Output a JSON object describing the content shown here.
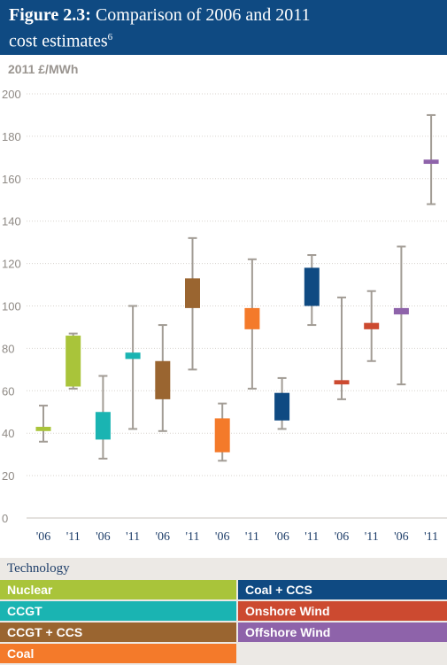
{
  "header": {
    "figure_label": "Figure 2.3:",
    "title_line1": "Comparison of 2006 and 2011",
    "title_line2": "cost estimates",
    "footnote": "6"
  },
  "colors": {
    "header_bg": "#0f4a82",
    "whisker": "#a29c95",
    "Nuclear": "#a9c43a",
    "CCGT": "#1ab4b2",
    "CCGT + CCS": "#9a6530",
    "Coal": "#f47a2a",
    "Coal + CCS": "#0f4a82",
    "Onshore Wind": "#cc4a30",
    "Offshore Wind": "#8e63aa"
  },
  "legend": {
    "title": "Technology",
    "items": [
      "Nuclear",
      "CCGT",
      "CCGT + CCS",
      "Coal",
      "Coal + CCS",
      "Onshore Wind",
      "Offshore Wind"
    ]
  },
  "chart_data": {
    "type": "box",
    "ylabel": "2011 £/MWh",
    "ylim": [
      0,
      200
    ],
    "yticks": [
      0,
      20,
      40,
      60,
      80,
      100,
      120,
      140,
      160,
      180,
      200
    ],
    "categories": [
      "'06",
      "'11",
      "'06",
      "'11",
      "'06",
      "'11",
      "'06",
      "'11",
      "'06",
      "'11",
      "'06",
      "'11",
      "'06",
      "'11"
    ],
    "series": [
      {
        "name": "Nuclear",
        "boxes": [
          {
            "year": "'06",
            "low": 36,
            "box_low": 41,
            "box_high": 43,
            "high": 53
          },
          {
            "year": "'11",
            "low": 61,
            "box_low": 62,
            "box_high": 86,
            "high": 87
          }
        ]
      },
      {
        "name": "CCGT",
        "boxes": [
          {
            "year": "'06",
            "low": 28,
            "box_low": 37,
            "box_high": 50,
            "high": 67
          },
          {
            "year": "'11",
            "low": 42,
            "box_low": 75,
            "box_high": 78,
            "high": 100
          }
        ]
      },
      {
        "name": "CCGT + CCS",
        "boxes": [
          {
            "year": "'06",
            "low": 41,
            "box_low": 56,
            "box_high": 74,
            "high": 91
          },
          {
            "year": "'11",
            "low": 70,
            "box_low": 99,
            "box_high": 113,
            "high": 132
          }
        ]
      },
      {
        "name": "Coal",
        "boxes": [
          {
            "year": "'06",
            "low": 27,
            "box_low": 31,
            "box_high": 47,
            "high": 54
          },
          {
            "year": "'11",
            "low": 61,
            "box_low": 89,
            "box_high": 99,
            "high": 122
          }
        ]
      },
      {
        "name": "Coal + CCS",
        "boxes": [
          {
            "year": "'06",
            "low": 42,
            "box_low": 46,
            "box_high": 59,
            "high": 66
          },
          {
            "year": "'11",
            "low": 91,
            "box_low": 100,
            "box_high": 118,
            "high": 124
          }
        ]
      },
      {
        "name": "Onshore Wind",
        "boxes": [
          {
            "year": "'06",
            "low": 56,
            "box_low": 63,
            "box_high": 65,
            "high": 104
          },
          {
            "year": "'11",
            "low": 74,
            "box_low": 89,
            "box_high": 92,
            "high": 107
          }
        ]
      },
      {
        "name": "Offshore Wind",
        "boxes": [
          {
            "year": "'06",
            "low": 63,
            "box_low": 96,
            "box_high": 99,
            "high": 128
          },
          {
            "year": "'11",
            "low": 148,
            "box_low": 167,
            "box_high": 169,
            "high": 190
          }
        ]
      }
    ]
  }
}
